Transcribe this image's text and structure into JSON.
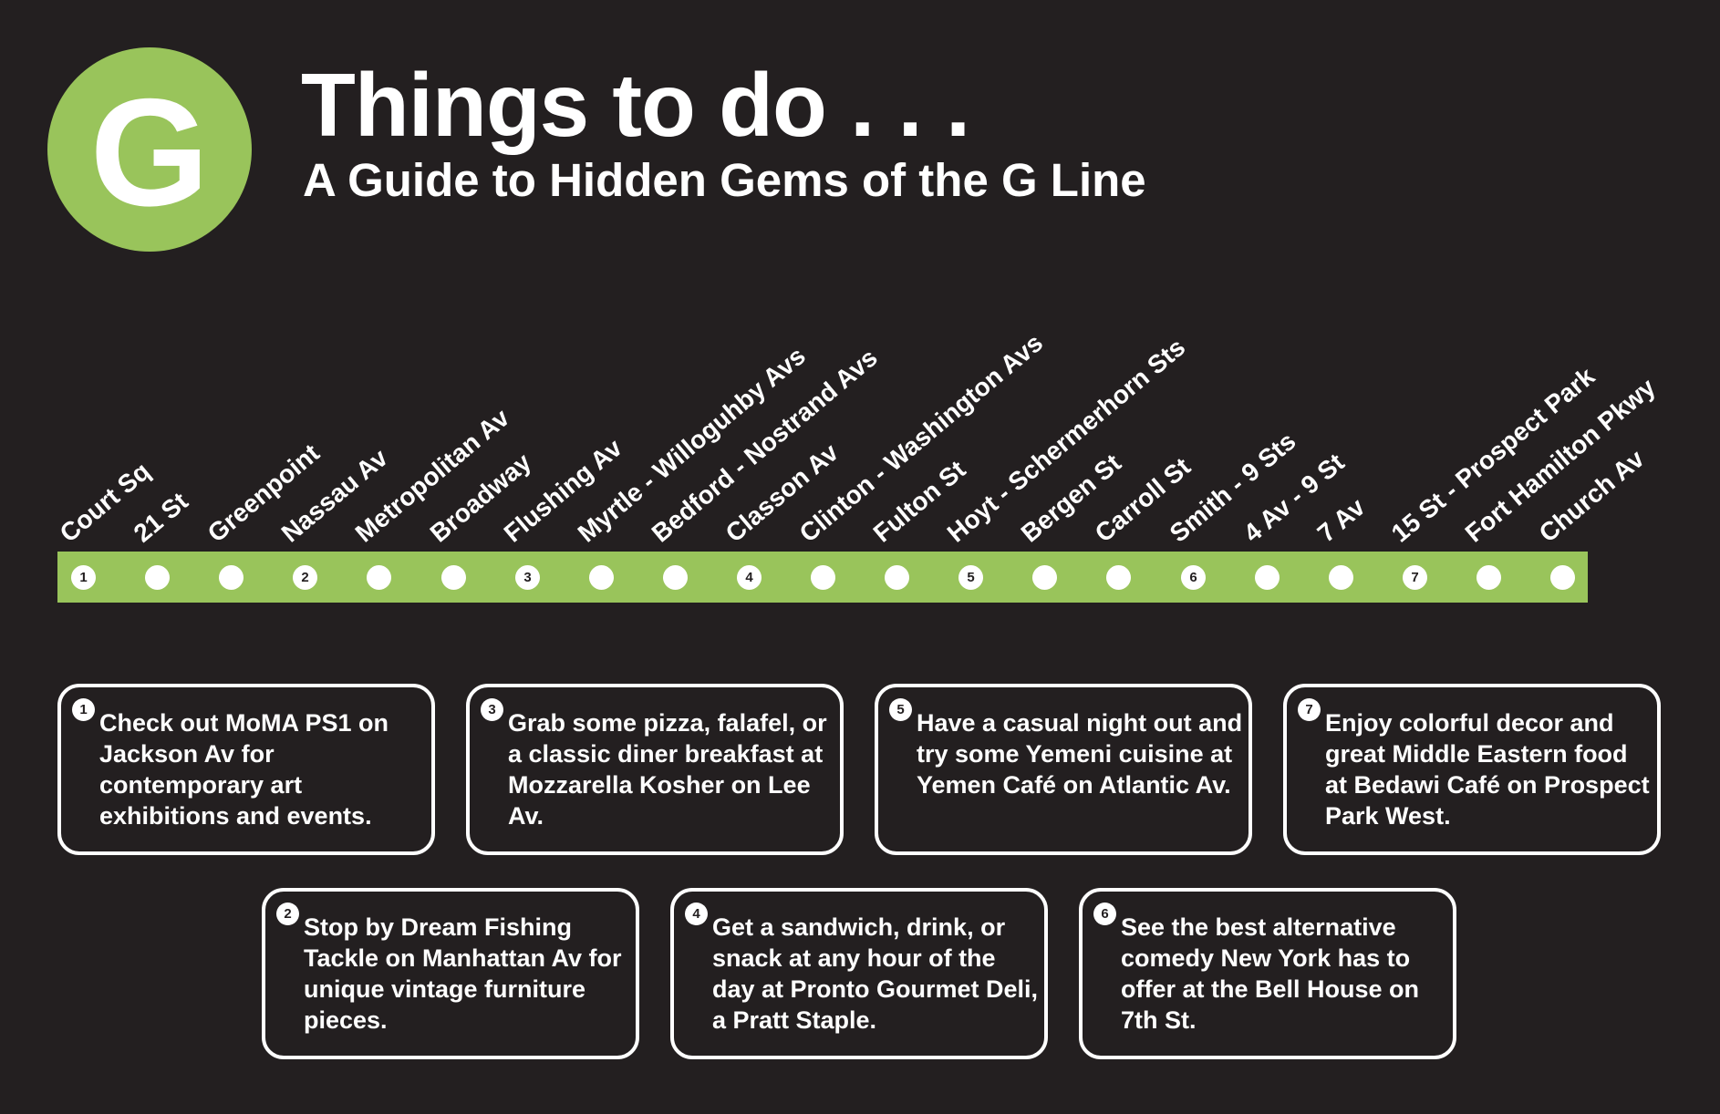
{
  "logo": {
    "letter": "G",
    "color": "#99c45b"
  },
  "title": "Things to do . . .",
  "subtitle": "A Guide to Hidden Gems of the G Line",
  "line_color": "#99c45b",
  "stations": [
    {
      "name": "Court Sq",
      "marker": "1"
    },
    {
      "name": "21 St",
      "marker": ""
    },
    {
      "name": "Greenpoint",
      "marker": ""
    },
    {
      "name": "Nassau Av",
      "marker": "2"
    },
    {
      "name": "Metropolitan Av",
      "marker": ""
    },
    {
      "name": "Broadway",
      "marker": ""
    },
    {
      "name": "Flushing Av",
      "marker": "3"
    },
    {
      "name": "Myrtle - Willoguhby Avs",
      "marker": ""
    },
    {
      "name": "Bedford - Nostrand Avs",
      "marker": ""
    },
    {
      "name": "Classon Av",
      "marker": "4"
    },
    {
      "name": "Clinton - Washington Avs",
      "marker": ""
    },
    {
      "name": "Fulton St",
      "marker": ""
    },
    {
      "name": "Hoyt - Schermerhorn Sts",
      "marker": "5"
    },
    {
      "name": "Bergen St",
      "marker": ""
    },
    {
      "name": "Carroll St",
      "marker": ""
    },
    {
      "name": "Smith - 9 Sts",
      "marker": "6"
    },
    {
      "name": "4 Av - 9 St",
      "marker": ""
    },
    {
      "name": "7 Av",
      "marker": ""
    },
    {
      "name": "15 St - Prospect Park",
      "marker": "7"
    },
    {
      "name": "Fort Hamilton Pkwy",
      "marker": ""
    },
    {
      "name": "Church Av",
      "marker": ""
    }
  ],
  "tips": [
    {
      "num": "1",
      "text": "Check out MoMA PS1 on Jackson Av for contemporary art exhibitions and events."
    },
    {
      "num": "2",
      "text": "Stop by Dream Fishing Tackle on Manhattan Av for unique vintage furniture pieces."
    },
    {
      "num": "3",
      "text": "Grab some pizza, falafel, or a classic diner breakfast at Mozzarella Kosher on Lee Av."
    },
    {
      "num": "4",
      "text": "Get a sandwich, drink, or snack at any hour of the day at Pronto Gourmet Deli, a Pratt Staple."
    },
    {
      "num": "5",
      "text": "Have a casual night out and try some Yemeni cuisine at Yemen Café on Atlantic Av."
    },
    {
      "num": "6",
      "text": "See the best alternative comedy New York has to offer at the Bell House on 7th St."
    },
    {
      "num": "7",
      "text": "Enjoy colorful decor and great Middle Eastern food at Bedawi Café on Prospect Park West."
    }
  ]
}
